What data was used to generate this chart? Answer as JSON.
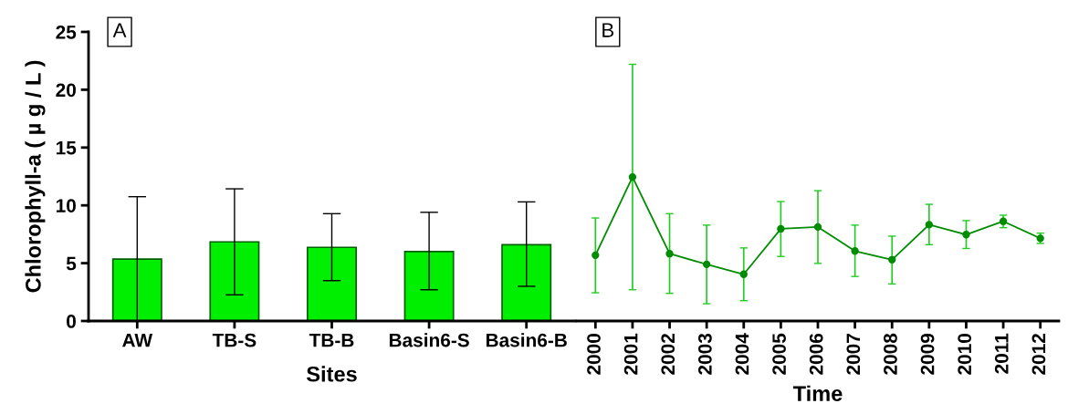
{
  "chart_data": [
    {
      "type": "bar",
      "categories": [
        "AW",
        "TB-S",
        "TB-B",
        "Basin6-S",
        "Basin6-B"
      ],
      "xlabel": "Sites",
      "ylabel": "Chlorophyll-a ( µ g / L )",
      "annotations": [
        "A"
      ],
      "series": [
        {
          "color": "#00ee00",
          "values": [
            5.35,
            6.84,
            6.37,
            6.0,
            6.6
          ],
          "errors": [
            [
              0,
              10.75
            ],
            [
              2.26,
              11.43
            ],
            [
              3.49,
              9.28
            ],
            [
              2.7,
              9.4
            ],
            [
              3.0,
              10.3
            ]
          ]
        }
      ],
      "ylim": [
        0,
        25
      ],
      "yticks": [
        0,
        5,
        10,
        15,
        20,
        25
      ],
      "grid": false,
      "legend": false
    },
    {
      "type": "line",
      "categories": [
        "2000",
        "2001",
        "2002",
        "2003",
        "2004",
        "2005",
        "2006",
        "2007",
        "2008",
        "2009",
        "2010",
        "2011",
        "2012"
      ],
      "xlabel": "Time",
      "annotations": [
        "B"
      ],
      "series": [
        {
          "color": "#008c00",
          "values": [
            5.69,
            12.45,
            5.82,
            4.9,
            4.04,
            7.97,
            8.13,
            6.05,
            5.3,
            8.33,
            7.47,
            8.62,
            7.15
          ],
          "errors": [
            [
              2.44,
              8.91
            ],
            [
              2.7,
              22.2
            ],
            [
              2.39,
              9.28
            ],
            [
              1.49,
              8.29
            ],
            [
              1.76,
              6.32
            ],
            [
              5.58,
              10.33
            ],
            [
              4.98,
              11.27
            ],
            [
              3.85,
              8.29
            ],
            [
              3.2,
              7.34
            ],
            [
              6.6,
              10.09
            ],
            [
              6.27,
              8.68
            ],
            [
              8.07,
              9.15
            ],
            [
              6.71,
              7.6
            ]
          ]
        }
      ],
      "ylim": [
        0,
        25
      ],
      "tick_labels": "x",
      "marker": "circle",
      "line_style": "solid",
      "grid": false,
      "legend": false
    }
  ]
}
